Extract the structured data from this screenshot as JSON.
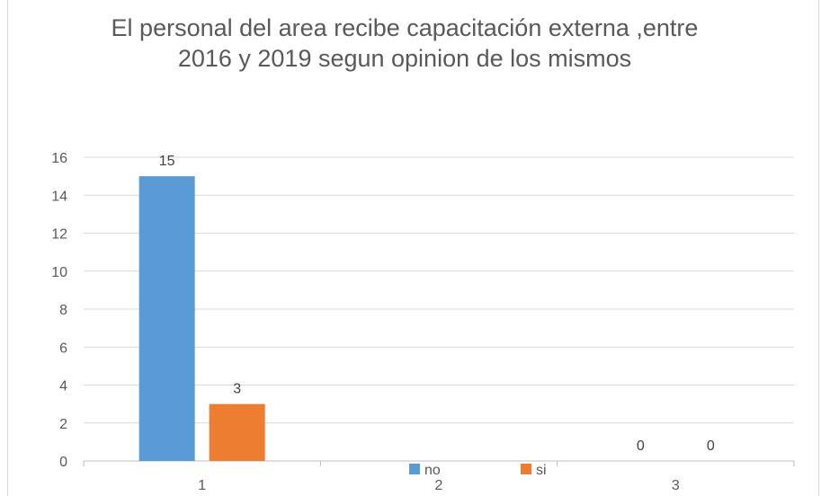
{
  "chart_data": {
    "type": "bar",
    "title": "El personal del area recibe capacitación externa ,entre\n2016 y 2019  segun opinion de los mismos",
    "categories": [
      "1",
      "2",
      "3"
    ],
    "series": [
      {
        "name": "no",
        "color": "#5b9bd5",
        "values": [
          15,
          null,
          0
        ]
      },
      {
        "name": "si",
        "color": "#ed7d31",
        "values": [
          3,
          null,
          0
        ]
      }
    ],
    "ylim": [
      0,
      16
    ],
    "yticks": [
      0,
      2,
      4,
      6,
      8,
      10,
      12,
      14,
      16
    ],
    "grid": true,
    "legend": "bottom",
    "xlabel": "",
    "ylabel": ""
  }
}
